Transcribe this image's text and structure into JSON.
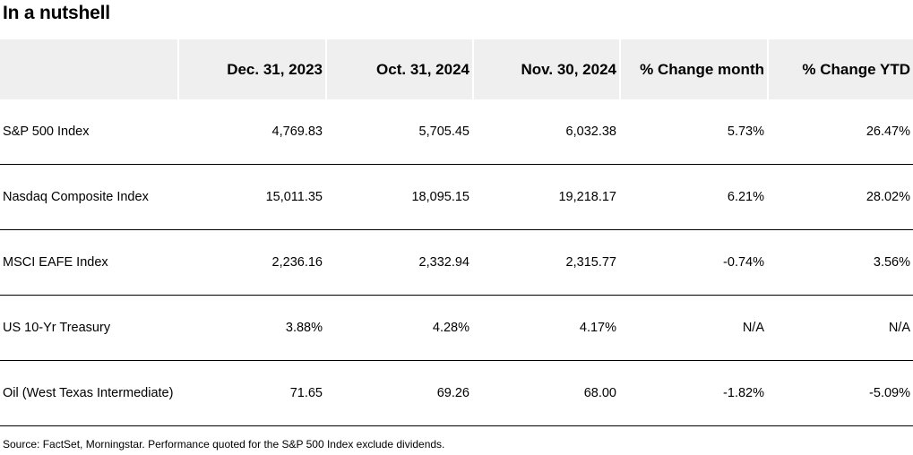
{
  "title": "In a nutshell",
  "table": {
    "columns": [
      "",
      "Dec. 31, 2023",
      "Oct. 31, 2024",
      "Nov. 30, 2024",
      "% Change month",
      "% Change YTD"
    ],
    "rows": [
      [
        "S&P 500 Index",
        "4,769.83",
        "5,705.45",
        "6,032.38",
        "5.73%",
        "26.47%"
      ],
      [
        "Nasdaq Composite Index",
        "15,011.35",
        "18,095.15",
        "19,218.17",
        "6.21%",
        "28.02%"
      ],
      [
        "MSCI EAFE Index",
        "2,236.16",
        "2,332.94",
        "2,315.77",
        "-0.74%",
        "3.56%"
      ],
      [
        "US 10-Yr Treasury",
        "3.88%",
        "4.28%",
        "4.17%",
        "N/A",
        "N/A"
      ],
      [
        "Oil (West Texas Intermediate)",
        "71.65",
        "69.26",
        "68.00",
        "-1.82%",
        "-5.09%"
      ]
    ]
  },
  "source": "Source: FactSet, Morningstar. Performance quoted for the S&P 500 Index exclude dividends."
}
